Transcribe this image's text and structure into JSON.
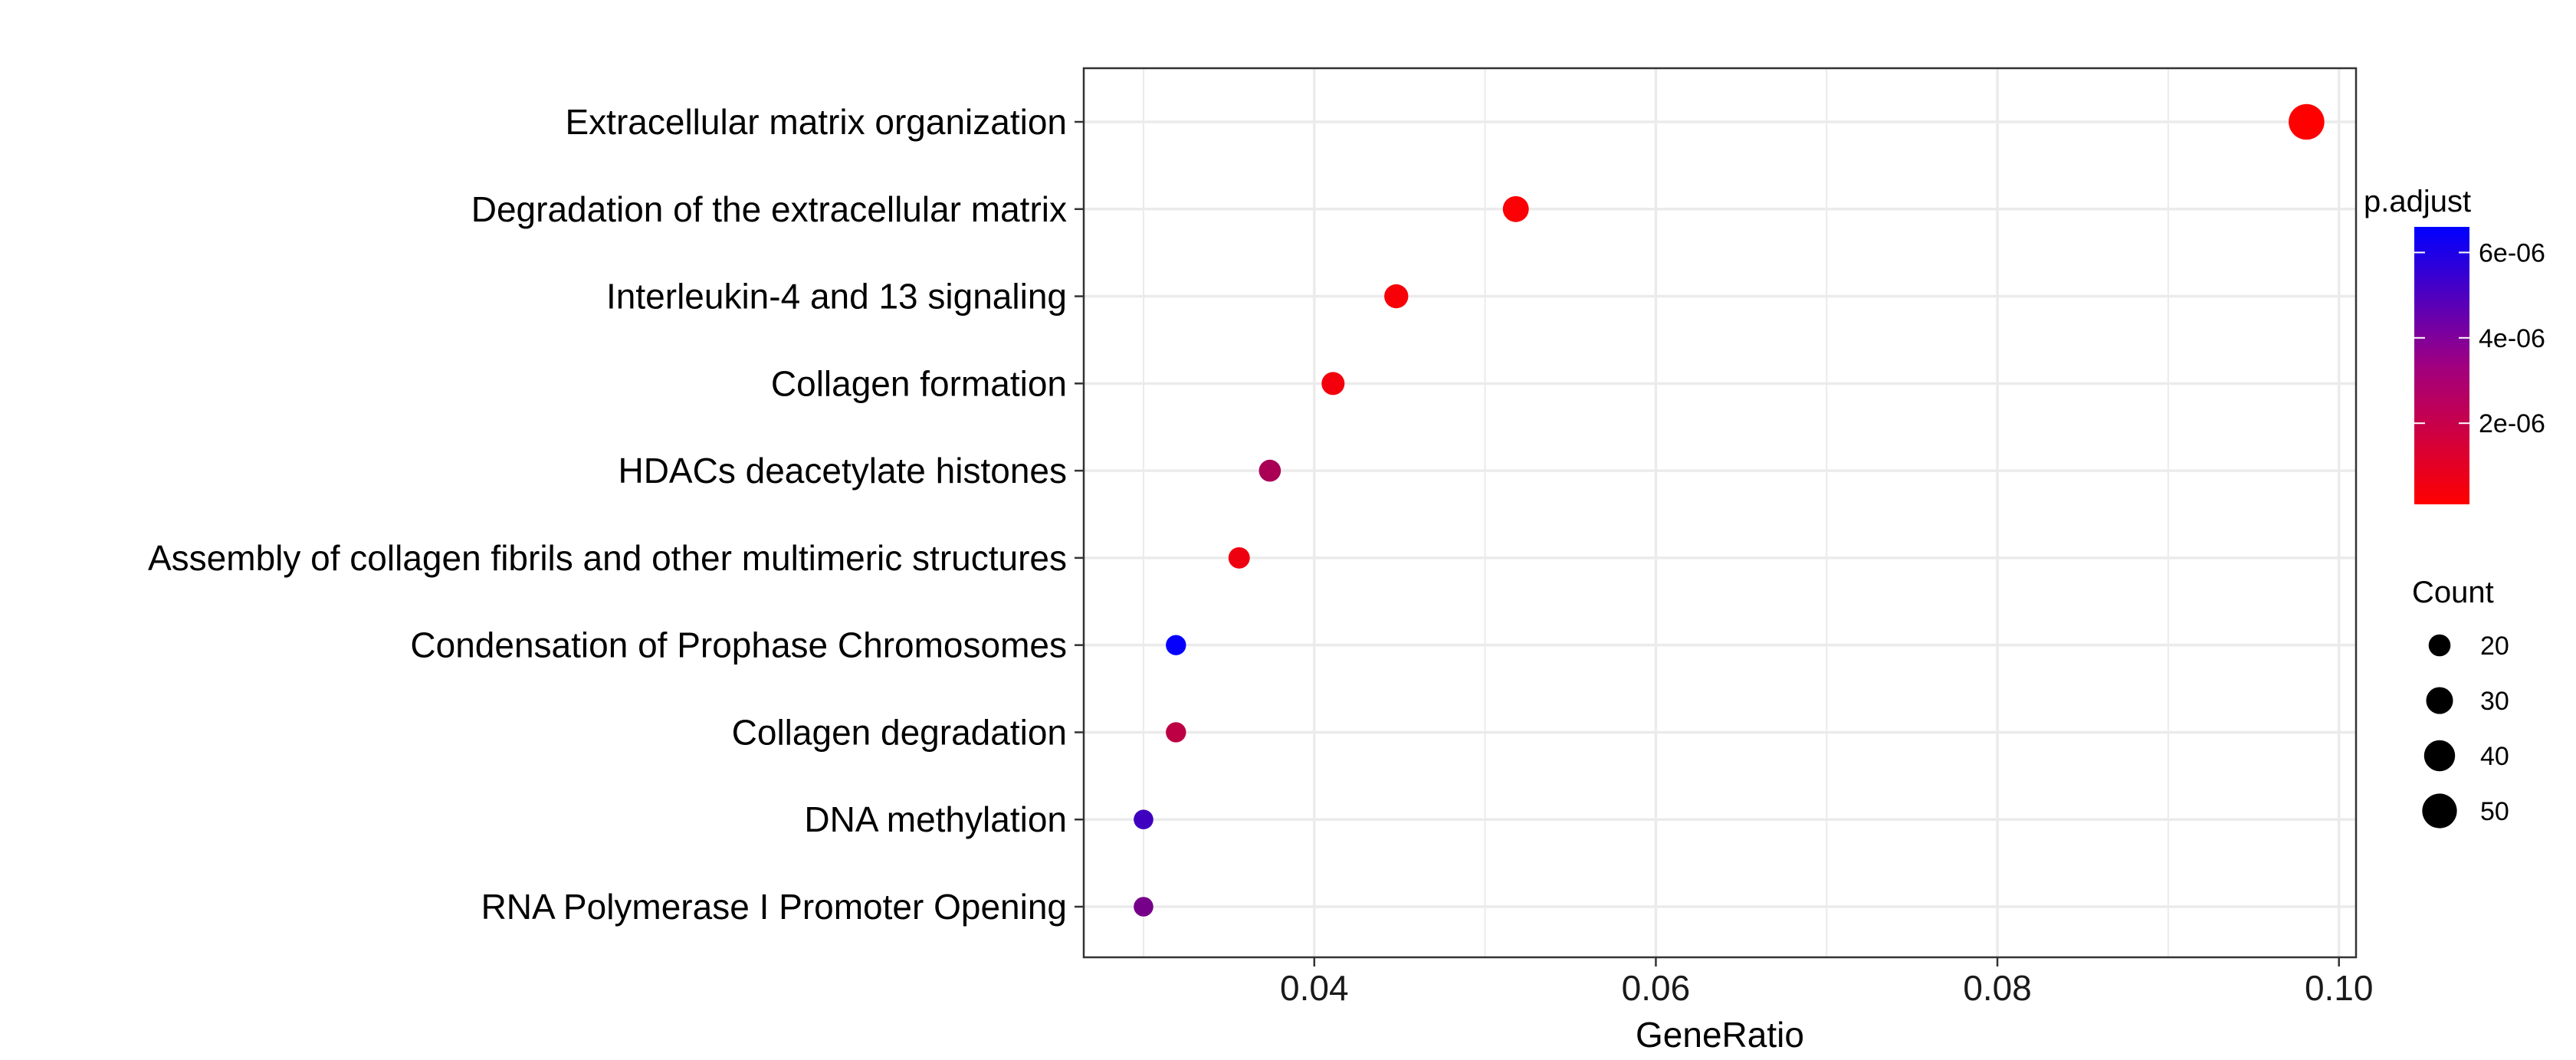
{
  "chart_data": {
    "type": "scatter",
    "title": "",
    "xlabel": "GeneRatio",
    "ylabel": "",
    "xlim": [
      0.0265,
      0.101
    ],
    "x_ticks": [
      0.04,
      0.06,
      0.08,
      0.1
    ],
    "x_tick_labels": [
      "0.04",
      "0.06",
      "0.08",
      "0.10"
    ],
    "grid": true,
    "categories": [
      "Extracellular matrix organization",
      "Degradation of the extracellular matrix",
      "Interleukin-4 and 13 signaling",
      "Collagen formation",
      "HDACs deacetylate histones",
      "Assembly of collagen fibrils and other multimeric structures",
      "Condensation of Prophase Chromosomes",
      "Collagen degradation",
      "DNA methylation",
      "RNA Polymerase I Promoter Opening"
    ],
    "points": [
      {
        "category": "Extracellular matrix organization",
        "x": 0.0981,
        "count": 53,
        "p_adjust": 1e-07
      },
      {
        "category": "Degradation of the extracellular matrix",
        "x": 0.0518,
        "count": 28,
        "p_adjust": 2e-07
      },
      {
        "category": "Interleukin-4 and 13 signaling",
        "x": 0.0448,
        "count": 24,
        "p_adjust": 3e-07
      },
      {
        "category": "Collagen formation",
        "x": 0.0411,
        "count": 22,
        "p_adjust": 4e-07
      },
      {
        "category": "HDACs deacetylate histones",
        "x": 0.0374,
        "count": 20,
        "p_adjust": 2.3e-06
      },
      {
        "category": "Assembly of collagen fibrils and other multimeric structures",
        "x": 0.0356,
        "count": 19,
        "p_adjust": 5e-07
      },
      {
        "category": "Condensation of Prophase Chromosomes",
        "x": 0.0319,
        "count": 17,
        "p_adjust": 6.5e-06
      },
      {
        "category": "Collagen degradation",
        "x": 0.0319,
        "count": 17,
        "p_adjust": 1.8e-06
      },
      {
        "category": "DNA methylation",
        "x": 0.03,
        "count": 16,
        "p_adjust": 5e-06
      },
      {
        "category": "RNA Polymerase I Promoter Opening",
        "x": 0.03,
        "count": 16,
        "p_adjust": 3.6e-06
      }
    ],
    "color_legend": {
      "title": "p.adjust",
      "min": 1e-07,
      "max": 6.6e-06,
      "low_color": "#ff0000",
      "high_color": "#0000ff",
      "breaks": [
        2e-06,
        4e-06,
        6e-06
      ],
      "labels": [
        "2e-06",
        "4e-06",
        "6e-06"
      ]
    },
    "size_legend": {
      "title": "Count",
      "values": [
        20,
        30,
        40,
        50
      ],
      "labels": [
        "20",
        "30",
        "40",
        "50"
      ]
    },
    "legend_position": "right",
    "colors": {
      "panel_border": "#333333",
      "grid": "#ebebeb",
      "text": "#000000",
      "tick_text": "#1a1a1a"
    }
  }
}
